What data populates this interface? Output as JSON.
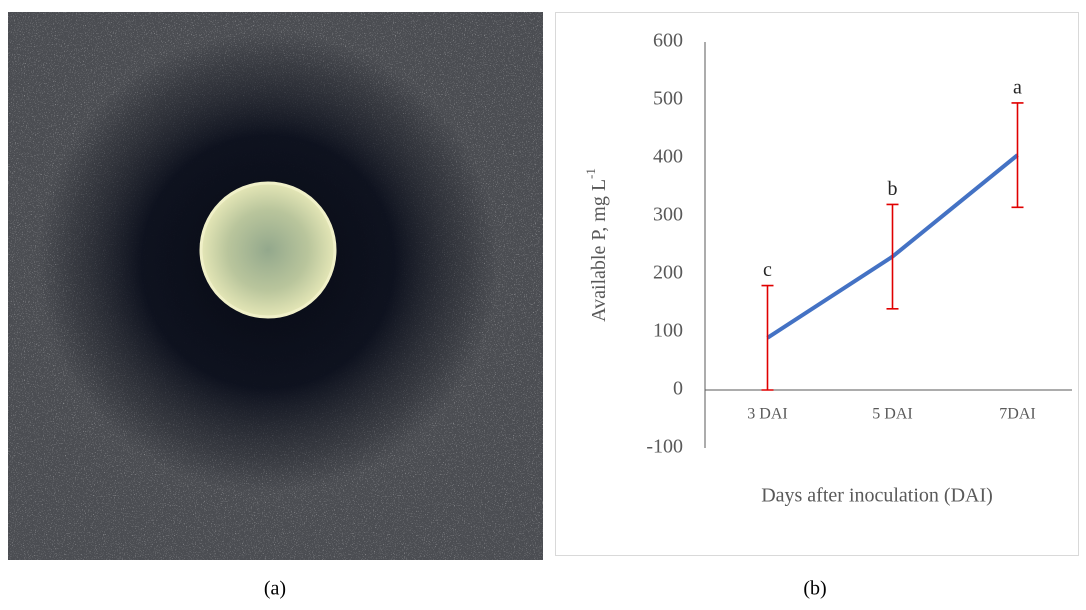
{
  "chart_data": {
    "type": "line",
    "categories": [
      "3 DAI",
      "5 DAI",
      "7DAI"
    ],
    "series": [
      {
        "color": "#4472c4",
        "values": [
          90,
          230,
          405
        ],
        "errors": [
          90,
          90,
          90
        ],
        "error_color": "#e00000"
      }
    ],
    "annotations": [
      "c",
      "b",
      "a"
    ],
    "ylim": [
      -100,
      600
    ],
    "yticks": [
      -100,
      0,
      100,
      200,
      300,
      400,
      500,
      600
    ],
    "y_label": "Available P, mg L",
    "y_label_sup": "-1",
    "x_label": "Days after inoculation  (DAI)",
    "panel_labels": [
      "(a)",
      "(b)"
    ]
  }
}
